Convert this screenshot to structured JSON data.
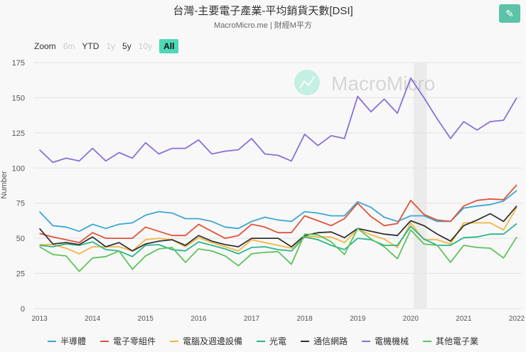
{
  "title": "台灣-主要電子產業-平均銷貨天數[DSI]",
  "subtitle": "MacroMicro.me | 財經M平方",
  "watermark": "MacroMicro",
  "edit_icon": "pencil-icon",
  "zoom": {
    "label": "Zoom",
    "buttons": [
      {
        "label": "6m",
        "enabled": false
      },
      {
        "label": "YTD",
        "enabled": true
      },
      {
        "label": "1y",
        "enabled": false
      },
      {
        "label": "5y",
        "enabled": true
      },
      {
        "label": "10y",
        "enabled": false
      },
      {
        "label": "All",
        "enabled": true,
        "active": true
      }
    ]
  },
  "chart_data": {
    "type": "line",
    "title": "台灣-主要電子產業-平均銷貨天數[DSI]",
    "ylabel": "Number",
    "xlabel": "",
    "ylim": [
      0,
      175
    ],
    "yticks": [
      "0",
      "25",
      "50",
      "75",
      "100",
      "125",
      "150",
      "175"
    ],
    "xticks": [
      "2013",
      "2014",
      "2015",
      "2016",
      "2017",
      "2018",
      "2019",
      "2020",
      "2021",
      "2022"
    ],
    "x": [
      "2013Q1",
      "2013Q2",
      "2013Q3",
      "2013Q4",
      "2014Q1",
      "2014Q2",
      "2014Q3",
      "2014Q4",
      "2015Q1",
      "2015Q2",
      "2015Q3",
      "2015Q4",
      "2016Q1",
      "2016Q2",
      "2016Q3",
      "2016Q4",
      "2017Q1",
      "2017Q2",
      "2017Q3",
      "2017Q4",
      "2018Q1",
      "2018Q2",
      "2018Q3",
      "2018Q4",
      "2019Q1",
      "2019Q2",
      "2019Q3",
      "2019Q4",
      "2020Q1",
      "2020Q2",
      "2020Q3",
      "2020Q4",
      "2021Q1",
      "2021Q2",
      "2021Q3",
      "2021Q4",
      "2022Q1"
    ],
    "shaded_range": [
      "2020Q1",
      "2020Q2"
    ],
    "grid": true,
    "legend": "bottom",
    "series": [
      {
        "name": "半導體",
        "color": "#3ba7d6",
        "values": [
          69,
          59,
          58,
          55,
          60,
          57,
          60,
          61,
          66.5,
          69,
          68,
          64,
          64,
          62,
          58,
          57,
          62,
          65,
          63,
          62,
          69,
          68,
          66,
          66,
          76,
          72,
          65,
          62,
          66,
          66,
          62,
          62,
          71.5,
          73,
          74,
          76.5,
          84
        ]
      },
      {
        "name": "電子零組件",
        "color": "#e0533a",
        "values": [
          53.5,
          51,
          49,
          47,
          54,
          50,
          50,
          50,
          58,
          55,
          52,
          52,
          60,
          55,
          50,
          52,
          60,
          58,
          54,
          54,
          66,
          62.5,
          59,
          64,
          75,
          65.5,
          59,
          60.5,
          77,
          67,
          63,
          62,
          73,
          77,
          78,
          77.5,
          88
        ]
      },
      {
        "name": "電腦及週邊設備",
        "color": "#f4b63f",
        "values": [
          45.5,
          45.5,
          43,
          39,
          44,
          44,
          44,
          41,
          49,
          50,
          49,
          44,
          50.5,
          47,
          44,
          41,
          49,
          47,
          45,
          43,
          51.5,
          51,
          51,
          47,
          56.5,
          52.5,
          49.5,
          43.5,
          61,
          49,
          49,
          46,
          61,
          61,
          61,
          56,
          72
        ]
      },
      {
        "name": "光電",
        "color": "#2bb58d",
        "values": [
          45,
          44,
          46,
          45,
          47.5,
          42,
          41,
          37,
          45,
          45.5,
          42,
          41,
          47.5,
          45,
          42.5,
          39,
          43.5,
          44,
          42,
          41,
          51,
          49,
          45,
          42,
          50,
          49,
          45,
          45,
          58.5,
          49.5,
          45,
          45,
          50.5,
          51,
          53,
          53,
          60.5
        ]
      },
      {
        "name": "通信網路",
        "color": "#333333",
        "values": [
          57,
          46,
          47,
          45.5,
          51,
          44,
          47,
          41,
          46,
          48,
          49,
          45,
          52,
          48,
          45.5,
          44,
          50,
          50,
          50,
          44,
          52,
          54,
          54.5,
          50.5,
          57,
          55,
          53,
          52,
          62.5,
          59,
          53,
          48,
          59,
          63,
          67.5,
          62,
          73
        ]
      },
      {
        "name": "電機機械",
        "color": "#8a6fd6",
        "values": [
          113,
          104,
          107,
          105,
          114,
          105,
          111,
          107,
          118,
          110,
          114,
          114,
          120,
          110,
          112,
          113,
          121,
          110,
          109,
          105,
          124,
          116,
          123,
          121,
          151,
          140,
          149,
          139,
          164,
          150,
          135,
          121,
          133,
          127,
          133,
          134,
          150
        ]
      },
      {
        "name": "其他電子業",
        "color": "#5cc45a",
        "values": [
          44,
          38.5,
          37.5,
          26.5,
          36,
          37,
          41,
          28,
          37.5,
          42.5,
          43.5,
          33,
          42.5,
          41,
          37.5,
          30.5,
          39,
          40,
          40.5,
          31.5,
          53,
          52.5,
          47.5,
          38.5,
          57,
          49.5,
          44,
          35.5,
          56,
          46,
          45,
          33,
          45,
          43.5,
          43,
          36,
          51
        ]
      }
    ]
  }
}
